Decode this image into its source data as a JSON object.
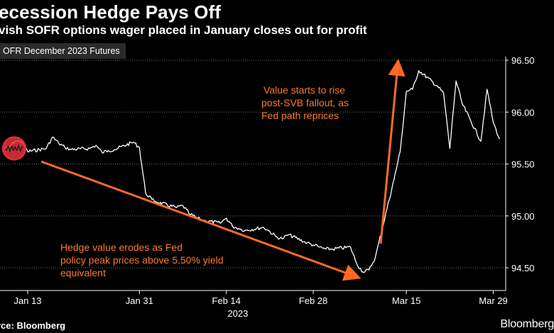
{
  "header": {
    "title": "ecession Hedge Pays Off",
    "subtitle": "vish SOFR options wager placed in January closes out for profit"
  },
  "legend": {
    "label": "OFR December 2023 Futures"
  },
  "footer": {
    "source": "rce: Bloomberg",
    "brand": "Bloomberg"
  },
  "colors": {
    "background": "#000000",
    "line": "#ffffff",
    "annotation": "#ff6a20",
    "marker": "#e8323c"
  },
  "chart_data": {
    "type": "line",
    "title": "ecession Hedge Pays Off",
    "subtitle": "vish SOFR options wager placed in January closes out for profit",
    "xlabel": "2023",
    "ylabel": "",
    "ylim": [
      94.4,
      96.5
    ],
    "xlim": [
      "2023-01-09",
      "2023-03-31"
    ],
    "y_axis_side": "right",
    "grid": "horizontal",
    "x_ticks": [
      {
        "label": "Jan 13",
        "date": "2023-01-13"
      },
      {
        "label": "Jan 31",
        "date": "2023-01-31"
      },
      {
        "label": "Feb 14",
        "date": "2023-02-14"
      },
      {
        "label": "Feb 28",
        "date": "2023-02-28"
      },
      {
        "label": "Mar 15",
        "date": "2023-03-15"
      },
      {
        "label": "Mar 29",
        "date": "2023-03-29"
      }
    ],
    "x_year_label": "2023",
    "y_ticks": [
      {
        "label": "94.50",
        "value": 94.5
      },
      {
        "label": "95.00",
        "value": 95.0
      },
      {
        "label": "95.50",
        "value": 95.5
      },
      {
        "label": "96.00",
        "value": 96.0
      },
      {
        "label": "96.50",
        "value": 96.5
      }
    ],
    "series": [
      {
        "name": "OFR December 2023 Futures",
        "x": [
          "2023-01-09",
          "2023-01-10",
          "2023-01-11",
          "2023-01-12",
          "2023-01-13",
          "2023-01-16",
          "2023-01-17",
          "2023-01-18",
          "2023-01-19",
          "2023-01-20",
          "2023-01-23",
          "2023-01-24",
          "2023-01-25",
          "2023-01-26",
          "2023-01-27",
          "2023-01-30",
          "2023-01-31",
          "2023-02-01",
          "2023-02-02",
          "2023-02-03",
          "2023-02-06",
          "2023-02-07",
          "2023-02-08",
          "2023-02-09",
          "2023-02-10",
          "2023-02-13",
          "2023-02-14",
          "2023-02-15",
          "2023-02-16",
          "2023-02-17",
          "2023-02-20",
          "2023-02-21",
          "2023-02-22",
          "2023-02-23",
          "2023-02-24",
          "2023-02-27",
          "2023-02-28",
          "2023-03-01",
          "2023-03-02",
          "2023-03-03",
          "2023-03-06",
          "2023-03-07",
          "2023-03-08",
          "2023-03-09",
          "2023-03-10",
          "2023-03-13",
          "2023-03-14",
          "2023-03-15",
          "2023-03-16",
          "2023-03-17",
          "2023-03-20",
          "2023-03-21",
          "2023-03-22",
          "2023-03-23",
          "2023-03-24",
          "2023-03-27",
          "2023-03-28",
          "2023-03-29",
          "2023-03-30"
        ],
        "values": [
          95.65,
          95.66,
          95.72,
          95.72,
          95.62,
          95.65,
          95.76,
          95.7,
          95.66,
          95.64,
          95.65,
          95.68,
          95.61,
          95.63,
          95.64,
          95.71,
          95.66,
          95.22,
          95.16,
          95.13,
          95.08,
          95.1,
          95.02,
          94.99,
          94.96,
          94.93,
          94.98,
          94.9,
          94.88,
          94.86,
          94.89,
          94.85,
          94.8,
          94.78,
          94.82,
          94.74,
          94.72,
          94.7,
          94.68,
          94.68,
          94.7,
          94.54,
          94.46,
          94.48,
          94.6,
          95.35,
          95.62,
          96.2,
          96.22,
          96.4,
          96.25,
          96.18,
          95.65,
          96.3,
          96.08,
          95.72,
          96.22,
          95.9,
          95.74
        ]
      }
    ],
    "annotations": [
      {
        "text": [
          "Value starts to rise",
          "post-SVB fallout, as",
          "Fed path reprices"
        ]
      },
      {
        "text": [
          "Hedge value erodes as Fed",
          "policy peak prices above 5.50% yield",
          "equivalent"
        ]
      }
    ]
  }
}
